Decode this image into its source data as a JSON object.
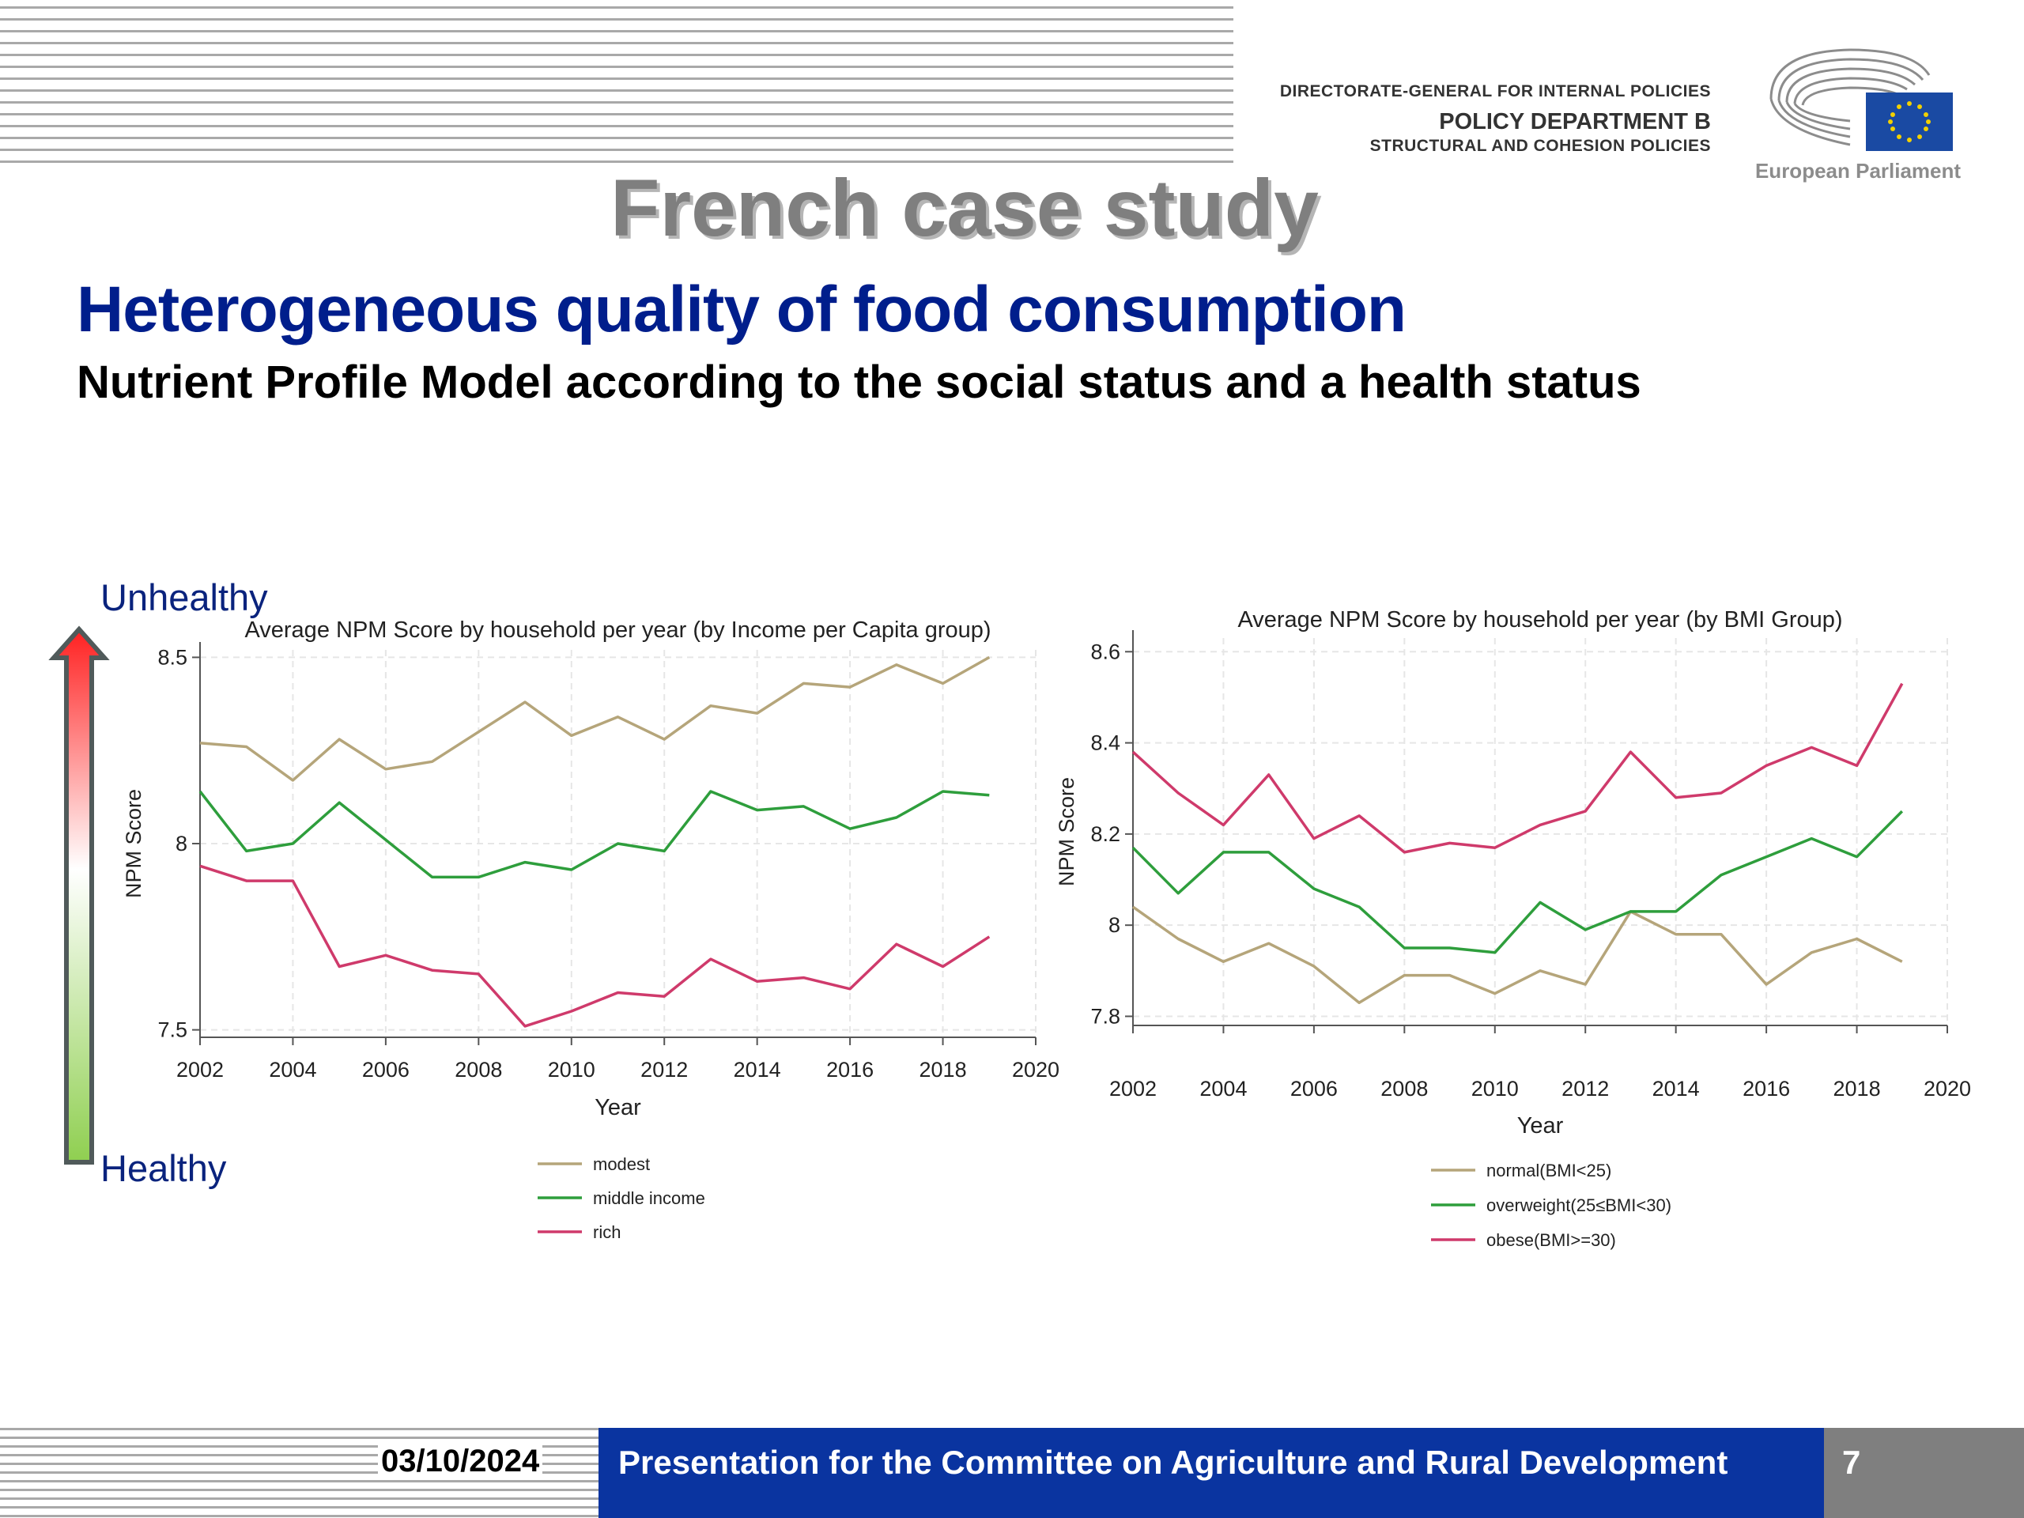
{
  "header": {
    "dg_line": "DIRECTORATE-GENERAL FOR INTERNAL POLICIES",
    "dept_line": "POLICY DEPARTMENT B",
    "dept_sub_line": "STRUCTURAL AND COHESION POLICIES",
    "logo_caption": "European Parliament"
  },
  "slide": {
    "title": "French case study",
    "subtitle": "Heterogeneous quality of food consumption",
    "description": "Nutrient Profile Model according to the social status and a health status"
  },
  "scale_labels": {
    "top": "Unhealthy",
    "bottom": "Healthy"
  },
  "footer": {
    "date": "03/10/2024",
    "presentation": "Presentation for the Committee on Agriculture and Rural Development",
    "page_number": "7"
  },
  "colors": {
    "tan": "#b5a57a",
    "green": "#2e9e3c",
    "pink": "#cf3a6b",
    "title_blue": "#001e8c",
    "footer_blue": "#0a34a0",
    "label_blue": "#0a237d"
  },
  "chart_data": [
    {
      "type": "line",
      "title": "Average NPM Score by household per year (by Income per Capita group)",
      "xlabel": "Year",
      "ylabel": "NPM Score",
      "xlim": [
        2002,
        2020
      ],
      "ylim": [
        7.48,
        8.52
      ],
      "x_ticks": [
        "2002",
        "2004",
        "2006",
        "2008",
        "2010",
        "2012",
        "2014",
        "2016",
        "2018",
        "2020"
      ],
      "y_ticks": [
        "7.5",
        "8",
        "8.5"
      ],
      "grid": true,
      "legend_position": "bottom",
      "x": [
        2002,
        2003,
        2004,
        2005,
        2006,
        2007,
        2008,
        2009,
        2010,
        2011,
        2012,
        2013,
        2014,
        2015,
        2016,
        2017,
        2018,
        2019
      ],
      "series": [
        {
          "name": "modest",
          "color": "#b5a57a",
          "values": [
            8.27,
            8.26,
            8.17,
            8.28,
            8.2,
            8.22,
            8.3,
            8.38,
            8.29,
            8.34,
            8.28,
            8.37,
            8.35,
            8.43,
            8.42,
            8.48,
            8.43,
            8.5
          ]
        },
        {
          "name": "middle income",
          "color": "#2e9e3c",
          "values": [
            8.14,
            7.98,
            8.0,
            8.11,
            8.01,
            7.91,
            7.91,
            7.95,
            7.93,
            8.0,
            7.98,
            8.14,
            8.09,
            8.1,
            8.04,
            8.07,
            8.14,
            8.13
          ]
        },
        {
          "name": "rich",
          "color": "#cf3a6b",
          "values": [
            7.94,
            7.9,
            7.9,
            7.67,
            7.7,
            7.66,
            7.65,
            7.51,
            7.55,
            7.6,
            7.59,
            7.69,
            7.63,
            7.64,
            7.61,
            7.73,
            7.67,
            7.75
          ]
        }
      ]
    },
    {
      "type": "line",
      "title": "Average NPM Score by household per year (by BMI Group)",
      "xlabel": "Year",
      "ylabel": "NPM Score",
      "xlim": [
        2002,
        2020
      ],
      "ylim": [
        7.78,
        8.63
      ],
      "x_ticks": [
        "2002",
        "2004",
        "2006",
        "2008",
        "2010",
        "2012",
        "2014",
        "2016",
        "2018",
        "2020"
      ],
      "y_ticks": [
        "7.8",
        "8",
        "8.2",
        "8.4",
        "8.6"
      ],
      "grid": true,
      "legend_position": "bottom",
      "x": [
        2002,
        2003,
        2004,
        2005,
        2006,
        2007,
        2008,
        2009,
        2010,
        2011,
        2012,
        2013,
        2014,
        2015,
        2016,
        2017,
        2018,
        2019
      ],
      "series": [
        {
          "name": "normal(BMI<25)",
          "color": "#b5a57a",
          "values": [
            8.04,
            7.97,
            7.92,
            7.96,
            7.91,
            7.83,
            7.89,
            7.89,
            7.85,
            7.9,
            7.87,
            8.03,
            7.98,
            7.98,
            7.87,
            7.94,
            7.97,
            7.92
          ]
        },
        {
          "name": "overweight(25≤BMI<30)",
          "color": "#2e9e3c",
          "values": [
            8.17,
            8.07,
            8.16,
            8.16,
            8.08,
            8.04,
            7.95,
            7.95,
            7.94,
            8.05,
            7.99,
            8.03,
            8.03,
            8.11,
            8.15,
            8.19,
            8.15,
            8.25
          ]
        },
        {
          "name": "obese(BMI>=30)",
          "color": "#cf3a6b",
          "values": [
            8.38,
            8.29,
            8.22,
            8.33,
            8.19,
            8.24,
            8.16,
            8.18,
            8.17,
            8.22,
            8.25,
            8.38,
            8.28,
            8.29,
            8.35,
            8.39,
            8.35,
            8.53
          ]
        }
      ]
    }
  ]
}
